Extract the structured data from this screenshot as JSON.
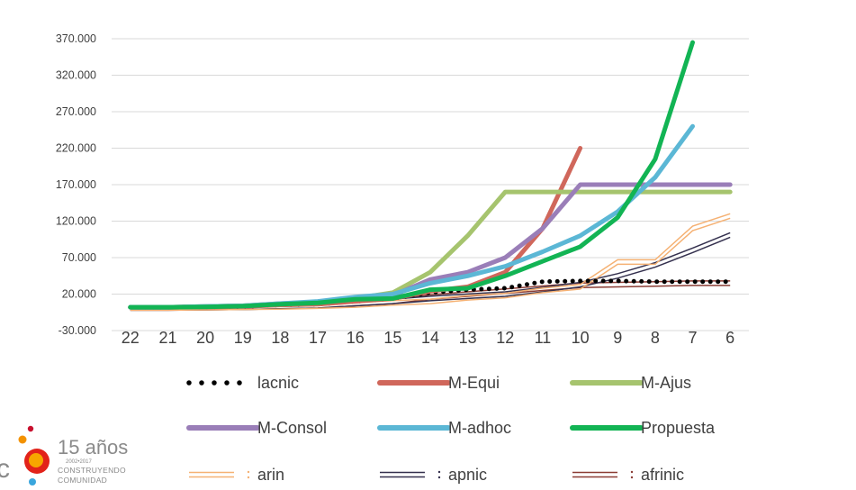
{
  "chart_data": {
    "type": "line",
    "x": [
      22,
      21,
      20,
      19,
      18,
      17,
      16,
      15,
      14,
      13,
      12,
      11,
      10,
      9,
      8,
      7,
      6
    ],
    "x_tick_labels": [
      "22",
      "21",
      "20",
      "19",
      "18",
      "17",
      "16",
      "15",
      "14",
      "13",
      "12",
      "11",
      "10",
      "9",
      "8",
      "7",
      "6"
    ],
    "ylim": [
      -30000,
      370000
    ],
    "y_ticks": [
      -30000,
      20000,
      70000,
      120000,
      170000,
      220000,
      270000,
      320000,
      370000
    ],
    "y_tick_labels": [
      "-30.000",
      "20.000",
      "70.000",
      "120.000",
      "170.000",
      "220.000",
      "270.000",
      "320.000",
      "370.000"
    ],
    "grid": true,
    "legend_position": "bottom",
    "series": [
      {
        "name": "lacnic",
        "color": "#000000",
        "style": "dotted",
        "values": [
          2000,
          2000,
          2500,
          3000,
          5000,
          6000,
          10000,
          14000,
          22000,
          26000,
          28000,
          37000,
          38000,
          38000,
          37000,
          37000,
          37000
        ]
      },
      {
        "name": "M-Equi",
        "color": "#D0675B",
        "style": "solid",
        "values": [
          2000,
          2000,
          2500,
          3000,
          5000,
          6000,
          10000,
          14000,
          24000,
          30000,
          50000,
          110000,
          220000,
          null,
          null,
          null,
          null
        ]
      },
      {
        "name": "M-Ajus",
        "color": "#A6C46E",
        "style": "solid",
        "values": [
          2000,
          2000,
          3000,
          4000,
          6000,
          8000,
          14000,
          22000,
          50000,
          100000,
          160000,
          160000,
          160000,
          160000,
          160000,
          160000,
          160000
        ]
      },
      {
        "name": "M-Consol",
        "color": "#9A7EB8",
        "style": "solid",
        "values": [
          2000,
          2000,
          3000,
          4000,
          7000,
          9000,
          15000,
          18000,
          40000,
          50000,
          70000,
          110000,
          170000,
          170000,
          170000,
          170000,
          170000
        ]
      },
      {
        "name": "M-adhoc",
        "color": "#5BB7D5",
        "style": "solid",
        "values": [
          2000,
          2000,
          3000,
          4000,
          7000,
          10000,
          16000,
          20000,
          35000,
          45000,
          58000,
          78000,
          100000,
          133000,
          180000,
          250000,
          null
        ]
      },
      {
        "name": "Propuesta",
        "color": "#12B454",
        "style": "solid",
        "values": [
          2000,
          2000,
          2500,
          3500,
          6000,
          8000,
          13000,
          14000,
          26000,
          28000,
          45000,
          65000,
          85000,
          125000,
          205000,
          365000,
          null
        ]
      },
      {
        "name": "arin",
        "color": "#F5B173",
        "style": "double",
        "values": [
          1000,
          1000,
          1500,
          2000,
          2500,
          3500,
          5000,
          8000,
          10000,
          15000,
          18000,
          25000,
          30000,
          64000,
          64000,
          110000,
          127000
        ]
      },
      {
        "name": "apnic",
        "color": "#34304E",
        "style": "double",
        "values": [
          1000,
          1000,
          1500,
          2000,
          3000,
          4000,
          7000,
          10000,
          14000,
          17000,
          20000,
          26000,
          33000,
          45000,
          60000,
          80000,
          101000
        ]
      },
      {
        "name": "afrinic",
        "color": "#8B3C34",
        "style": "double",
        "values": [
          1000,
          1000,
          1500,
          2000,
          3000,
          4000,
          7000,
          10000,
          16000,
          20000,
          24000,
          28000,
          32000,
          33000,
          34000,
          35000,
          35000
        ]
      }
    ]
  },
  "logo": {
    "anniversary": "15 años",
    "years": "2002•2017",
    "line1": "CONSTRUYENDO",
    "line2": "COMUNIDAD",
    "partial_letter": "c"
  }
}
